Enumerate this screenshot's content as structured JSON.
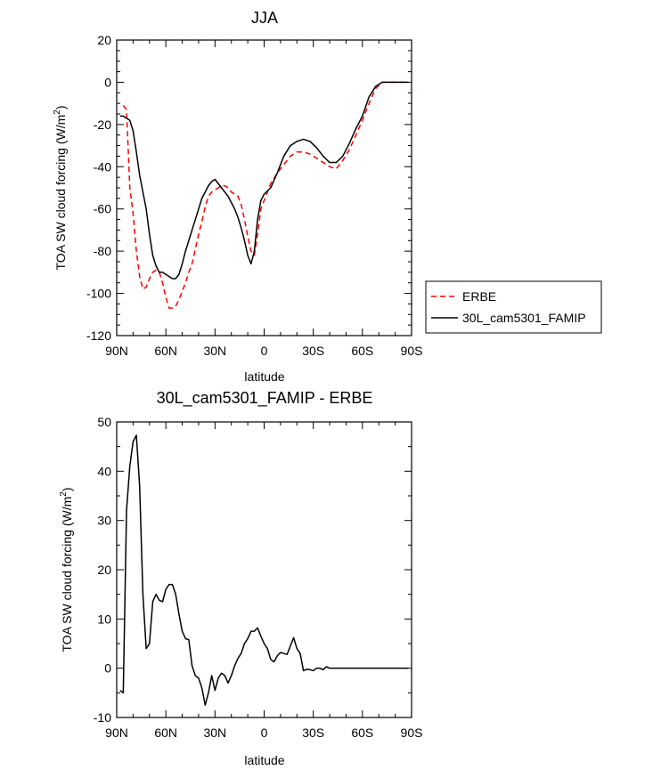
{
  "chart_data": [
    {
      "type": "line",
      "title": "JJA",
      "xlabel": "latitude",
      "ylabel": "TOA SW cloud forcing (W/m",
      "ylabel_sup": "2",
      "ylabel_close": ")",
      "xlim": [
        -90,
        90
      ],
      "ylim": [
        -120,
        20
      ],
      "xticks": [
        -90,
        -60,
        -30,
        0,
        30,
        60,
        90
      ],
      "xtick_labels": [
        "90N",
        "60N",
        "30N",
        "0",
        "30S",
        "60S",
        "90S"
      ],
      "yticks": [
        20,
        0,
        -20,
        -40,
        -60,
        -80,
        -100,
        -120
      ],
      "ytick_labels": [
        "20",
        "0",
        "-20",
        "-40",
        "-60",
        "-80",
        "-100",
        "-120"
      ],
      "legend": "right",
      "series": [
        {
          "name": "ERBE",
          "color": "#ff0000",
          "style": "dashed",
          "x": [
            -86,
            -84,
            -82,
            -80,
            -78,
            -76,
            -74,
            -72,
            -70,
            -68,
            -66,
            -64,
            -62,
            -60,
            -58,
            -56,
            -54,
            -52,
            -50,
            -48,
            -46,
            -44,
            -42,
            -40,
            -38,
            -36,
            -34,
            -32,
            -30,
            -28,
            -26,
            -24,
            -22,
            -20,
            -18,
            -16,
            -14,
            -12,
            -10,
            -8,
            -6,
            -4,
            -2,
            0,
            4,
            8,
            12,
            16,
            20,
            24,
            28,
            32,
            36,
            40,
            44,
            48,
            52,
            56,
            60,
            64,
            68,
            72,
            76,
            80,
            84,
            88
          ],
          "y": [
            -11,
            -13,
            -50,
            -62,
            -80,
            -92,
            -98,
            -97,
            -93,
            -90,
            -89,
            -90,
            -95,
            -102,
            -107,
            -107,
            -106,
            -103,
            -99,
            -95,
            -90,
            -86,
            -79,
            -72,
            -66,
            -59,
            -54,
            -52,
            -51,
            -50,
            -49,
            -49,
            -50,
            -52,
            -53,
            -54,
            -58,
            -65,
            -73,
            -80,
            -82,
            -72,
            -60,
            -56,
            -48,
            -43,
            -39,
            -35,
            -33,
            -33,
            -34,
            -36,
            -38,
            -40,
            -41,
            -37,
            -32,
            -25,
            -18,
            -10,
            -3,
            0,
            0,
            0,
            0,
            0
          ]
        },
        {
          "name": "30L_cam5301_FAMIP",
          "color": "#000000",
          "style": "solid",
          "x": [
            -88,
            -86,
            -84,
            -82,
            -80,
            -78,
            -76,
            -74,
            -72,
            -70,
            -68,
            -66,
            -64,
            -62,
            -60,
            -58,
            -56,
            -54,
            -52,
            -50,
            -48,
            -46,
            -44,
            -42,
            -40,
            -38,
            -36,
            -34,
            -32,
            -30,
            -28,
            -26,
            -24,
            -22,
            -20,
            -18,
            -16,
            -14,
            -12,
            -10,
            -8,
            -6,
            -4,
            -2,
            0,
            4,
            8,
            12,
            16,
            20,
            24,
            28,
            32,
            36,
            40,
            44,
            48,
            52,
            56,
            60,
            64,
            68,
            72,
            76,
            80,
            84,
            88
          ],
          "y": [
            -16,
            -16,
            -17,
            -18,
            -23,
            -33,
            -44,
            -52,
            -60,
            -72,
            -82,
            -87,
            -90,
            -90,
            -91,
            -92,
            -93,
            -93,
            -91,
            -86,
            -80,
            -75,
            -70,
            -65,
            -60,
            -55,
            -52,
            -49,
            -47,
            -46,
            -48,
            -50,
            -52,
            -54,
            -57,
            -60,
            -64,
            -69,
            -75,
            -82,
            -86,
            -80,
            -65,
            -56,
            -53,
            -50,
            -43,
            -35,
            -30,
            -28,
            -27,
            -28,
            -31,
            -35,
            -38,
            -38,
            -35,
            -29,
            -22,
            -16,
            -7,
            -2,
            0,
            0,
            0,
            0,
            0
          ]
        }
      ]
    },
    {
      "type": "line",
      "title": "30L_cam5301_FAMIP - ERBE",
      "xlabel": "latitude",
      "ylabel": "TOA SW cloud forcing (W/m",
      "ylabel_sup": "2",
      "ylabel_close": ")",
      "xlim": [
        -90,
        90
      ],
      "ylim": [
        -10,
        50
      ],
      "xticks": [
        -90,
        -60,
        -30,
        0,
        30,
        60,
        90
      ],
      "xtick_labels": [
        "90N",
        "60N",
        "30N",
        "0",
        "30S",
        "60S",
        "90S"
      ],
      "yticks": [
        50,
        40,
        30,
        20,
        10,
        0,
        -10
      ],
      "ytick_labels": [
        "50",
        "40",
        "30",
        "20",
        "10",
        "0",
        "-10"
      ],
      "series": [
        {
          "name": "30L_cam5301_FAMIP - ERBE",
          "color": "#000000",
          "style": "solid",
          "x": [
            -88,
            -86,
            -84,
            -82,
            -80,
            -78,
            -76,
            -74,
            -72,
            -70,
            -68,
            -66,
            -64,
            -62,
            -60,
            -58,
            -56,
            -54,
            -52,
            -50,
            -48,
            -46,
            -44,
            -42,
            -40,
            -38,
            -36,
            -34,
            -32,
            -30,
            -28,
            -26,
            -24,
            -22,
            -20,
            -18,
            -16,
            -14,
            -12,
            -10,
            -8,
            -6,
            -4,
            -2,
            0,
            2,
            4,
            6,
            8,
            10,
            12,
            14,
            16,
            18,
            20,
            22,
            24,
            26,
            28,
            30,
            32,
            34,
            36,
            38,
            40,
            42,
            44,
            46,
            48,
            50,
            52,
            54,
            56,
            58,
            60,
            62,
            64,
            66,
            68,
            70,
            72,
            74,
            76,
            78,
            80,
            82,
            84,
            86,
            88
          ],
          "y": [
            -4.5,
            -5,
            32,
            41,
            46,
            47.3,
            37,
            15,
            4,
            5,
            13.5,
            15,
            13.8,
            13.5,
            16,
            17,
            17,
            15,
            11,
            7.5,
            6,
            5.8,
            0.5,
            -1.5,
            -2,
            -4,
            -7.5,
            -5,
            -1.5,
            -4.5,
            -2,
            -1,
            -1.5,
            -3,
            -1.5,
            0.5,
            2,
            3,
            5,
            6,
            7.5,
            7.5,
            8.2,
            6.5,
            5,
            4,
            1.8,
            1.3,
            2.5,
            3.2,
            3,
            2.8,
            4.5,
            6.2,
            4,
            3,
            -0.5,
            -0.2,
            -0.3,
            -0.5,
            0,
            0,
            -0.3,
            0.3,
            0,
            0,
            0,
            0,
            0,
            0,
            0,
            0,
            0,
            0,
            0,
            0,
            0,
            0,
            0,
            0,
            0,
            0,
            0,
            0,
            0,
            0,
            0,
            0,
            0
          ]
        }
      ]
    }
  ]
}
